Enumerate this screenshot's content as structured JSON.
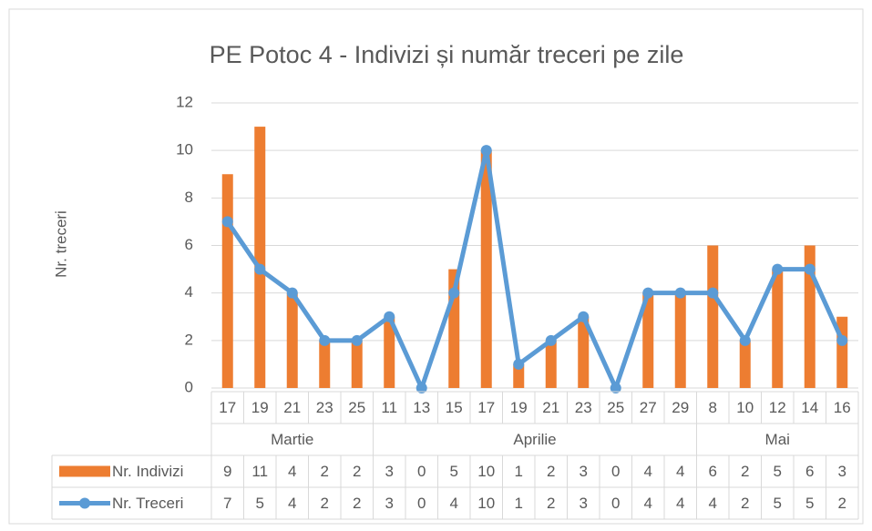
{
  "chart_data": {
    "type": "bar_line",
    "title": "PE Potoc 4 - Indivizi și număr treceri pe zile",
    "y_label": "Nr. treceri",
    "groups": [
      {
        "label": "Martie",
        "days": [
          "17",
          "19",
          "21",
          "23",
          "25"
        ]
      },
      {
        "label": "Aprilie",
        "days": [
          "11",
          "13",
          "15",
          "17",
          "19",
          "21",
          "23",
          "25",
          "27",
          "29"
        ]
      },
      {
        "label": "Mai",
        "days": [
          "8",
          "10",
          "12",
          "14",
          "16"
        ]
      }
    ],
    "series": [
      {
        "name": "Nr. Indivizi",
        "type": "bar",
        "color": "#ed7d31",
        "values": [
          9,
          11,
          4,
          2,
          2,
          3,
          0,
          5,
          10,
          1,
          2,
          3,
          0,
          4,
          4,
          6,
          2,
          5,
          6,
          3
        ]
      },
      {
        "name": "Nr. Treceri",
        "type": "line",
        "color": "#5b9bd5",
        "values": [
          7,
          5,
          4,
          2,
          2,
          3,
          0,
          4,
          10,
          1,
          2,
          3,
          0,
          4,
          4,
          4,
          2,
          5,
          5,
          2
        ]
      }
    ],
    "ylim": [
      0,
      12
    ],
    "yticks": [
      0,
      2,
      4,
      6,
      8,
      10,
      12
    ],
    "grid": true
  }
}
